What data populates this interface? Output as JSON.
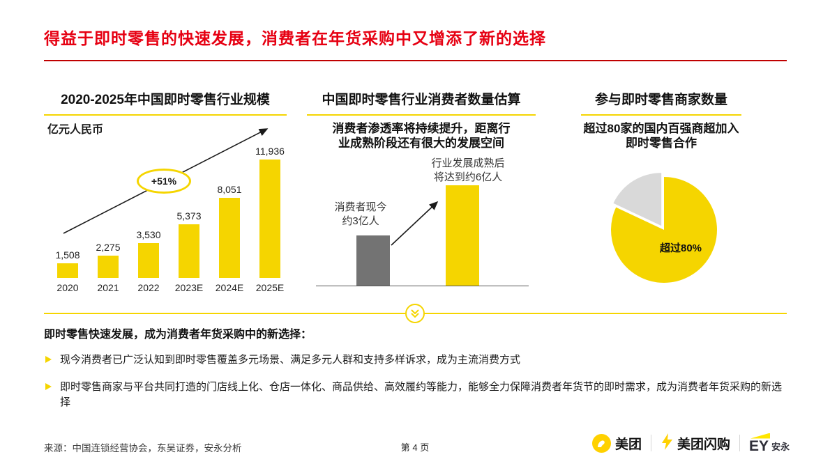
{
  "slide": {
    "title": "得益于即时零售的快速发展，消费者在年货采购中又增添了新的选择"
  },
  "columns": {
    "market": {
      "header": "2020-2025年中国即时零售行业规模",
      "unit_label": "亿元人民币",
      "growth_badge": "+51%"
    },
    "consumers": {
      "header": "中国即时零售行业消费者数量估算",
      "subtitle": "消费者渗透率将持续提升，距离行\n业成熟阶段还有很大的发展空间",
      "current_label": "消费者现今\n约3亿人",
      "mature_label": "行业发展成熟后\n将达到约6亿人"
    },
    "merchants": {
      "header": "参与即时零售商家数量",
      "subtitle": "超过80家的国内百强商超加入\n即时零售合作",
      "pie_label": "超过80%"
    }
  },
  "summary": {
    "heading": "即时零售快速发展，成为消费者年货采购中的新选择：",
    "bullets": [
      "现今消费者已广泛认知到即时零售覆盖多元场景、满足多元人群和支持多样诉求，成为主流消费方式",
      "即时零售商家与平台共同打造的门店线上化、仓店一体化、商品供给、高效履约等能力，能够全力保障消费者年货节的即时需求，成为消费者年货采购的新选择"
    ]
  },
  "footer": {
    "source": "来源：中国连锁经营协会，东吴证券，安永分析",
    "page_number": "第 4 页",
    "logos": {
      "meituan": "美团",
      "meituan_shangou": "美团闪购",
      "ey": "EY",
      "ey_cn": "安永"
    }
  },
  "colors": {
    "accent_yellow": "#F5D500",
    "title_red": "#E60012",
    "rule_red": "#C00000",
    "bar_gray": "#737373",
    "pie_gray": "#D9D9D9",
    "meituan_yellow": "#FFD100",
    "ey_yellow": "#FFE600"
  },
  "chart_data": [
    {
      "type": "bar",
      "title": "2020-2025年中国即时零售行业规模",
      "ylabel": "亿元人民币",
      "categories": [
        "2020",
        "2021",
        "2022",
        "2023E",
        "2024E",
        "2025E"
      ],
      "values": [
        1508,
        2275,
        3530,
        5373,
        8051,
        11936
      ],
      "value_labels": [
        "1,508",
        "2,275",
        "3,530",
        "5,373",
        "8,051",
        "11,936"
      ],
      "annotation": "+51%",
      "bar_color": "#F5D500",
      "grid": false,
      "legend": false
    },
    {
      "type": "bar",
      "title": "中国即时零售行业消费者数量估算",
      "subtitle": "消费者渗透率将持续提升，距离行业成熟阶段还有很大的发展空间",
      "categories": [
        "消费者现今约3亿人",
        "行业发展成熟后将达到约6亿人"
      ],
      "values": [
        3,
        6
      ],
      "unit": "亿人",
      "bar_colors": [
        "#737373",
        "#F5D500"
      ],
      "grid": false,
      "legend": false
    },
    {
      "type": "pie",
      "title": "参与即时零售商家数量",
      "subtitle": "超过80家的国内百强商超加入即时零售合作",
      "slices": [
        {
          "label": "超过80%",
          "value": 82,
          "color": "#F5D500"
        },
        {
          "label": "",
          "value": 18,
          "color": "#D9D9D9"
        }
      ]
    }
  ]
}
